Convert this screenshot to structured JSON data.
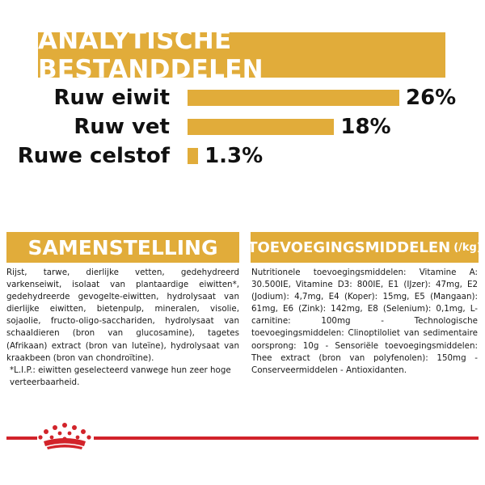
{
  "analytical": {
    "title": "ANALYTISCHE BESTANDDELEN",
    "rows": [
      {
        "label": "Ruw eiwit",
        "value": "26%",
        "percent": 26
      },
      {
        "label": "Ruw vet",
        "value": "18%",
        "percent": 18
      },
      {
        "label": "Ruwe celstof",
        "value": "1.3%",
        "percent": 1.3
      }
    ]
  },
  "composition": {
    "title": "SAMENSTELLING",
    "text": "Rijst, tarwe, dierlijke vetten, gedehydreerd varkenseiwit, isolaat van plantaardige eiwitten*, gedehydreerde gevogelte-eiwitten, hydrolysaat van dierlijke eiwitten, bietenpulp, mineralen, visolie, sojaolie, fructo-oligo-sacchariden, hydrolysaat van schaaldieren (bron van glucosamine), tagetes (Afrikaan) extract (bron van luteïne), hydrolysaat van kraakbeen (bron van chondroïtine).",
    "note": "*L.I.P.: eiwitten geselecteerd vanwege hun zeer hoge verteerbaarheid."
  },
  "additives": {
    "title": "TOEVOEGINGSMIDDELEN",
    "unit": "(/kg)",
    "text": "Nutritionele toevoegingsmiddelen: Vitamine A: 30.500IE, Vitamine D3: 800IE, E1 (IJzer): 47mg, E2 (Jodium): 4,7mg, E4 (Koper): 15mg, E5 (Mangaan): 61mg, E6 (Zink): 142mg, E8 (Selenium): 0,1mg, L-carnitine: 100mg - Technologische toevoegingsmiddelen: Clinoptiloliet van sedimentaire oorsprong: 10g - Sensoriële toevoegingsmiddelen: Thee extract (bron van polyfenolen): 150mg - Conserveermiddelen - Antioxidanten."
  },
  "footer": {
    "logo_icon": "crown-icon"
  },
  "colors": {
    "accent": "#e1ac3a",
    "brand_red": "#d2232a",
    "text": "#1a1a1a"
  }
}
